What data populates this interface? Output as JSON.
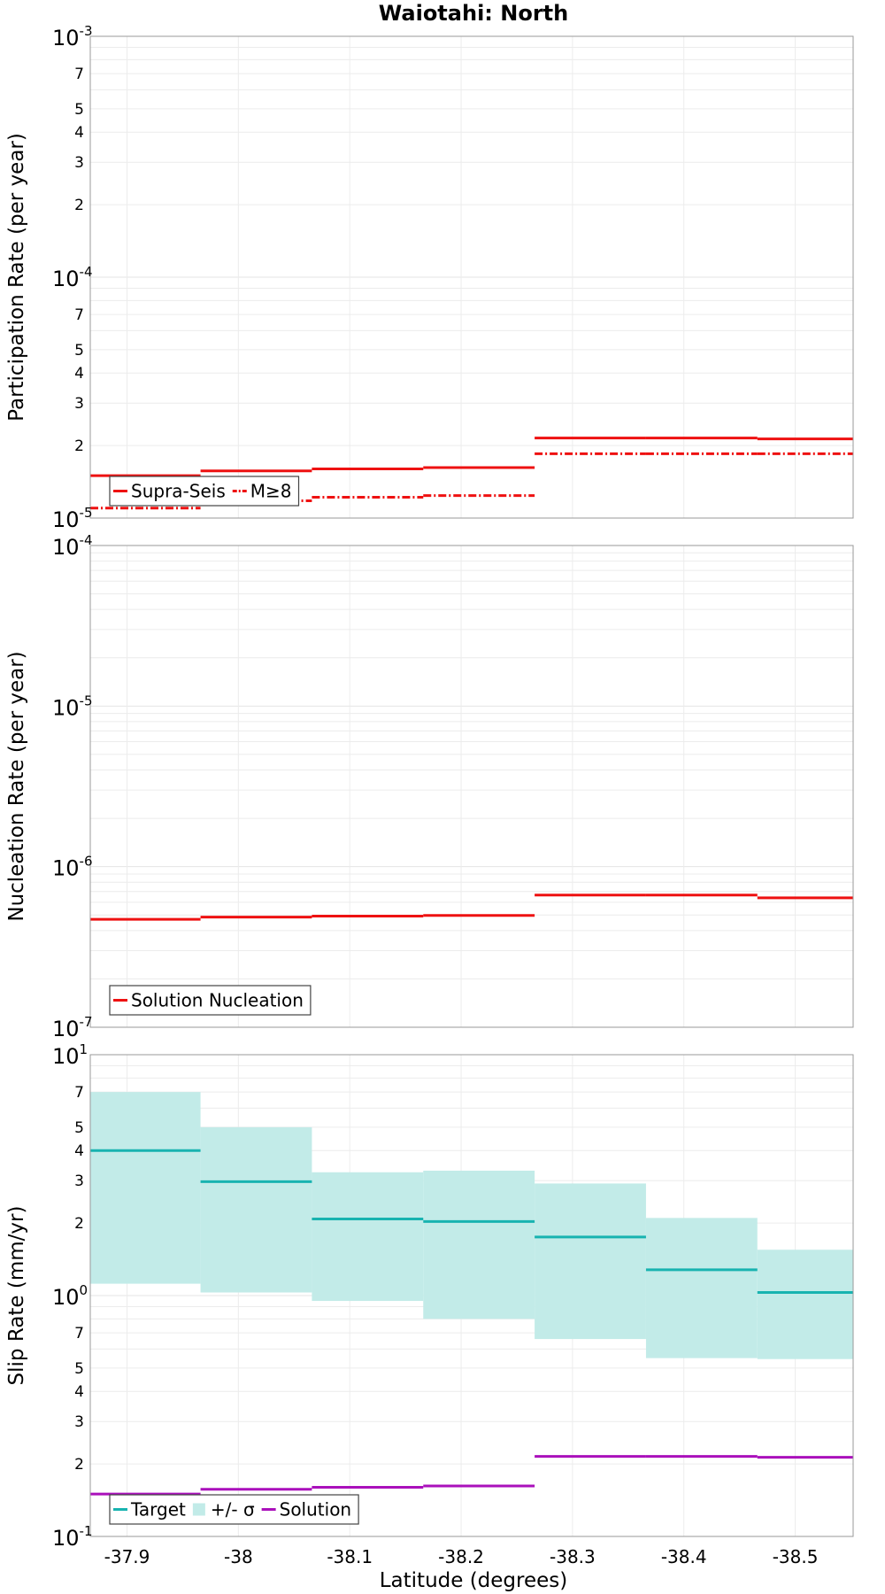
{
  "chart_data": {
    "title": "Waiotahi: North",
    "xlabel": "Latitude (degrees)",
    "x_ticks": [
      "-37.9",
      "-38",
      "-38.1",
      "-38.2",
      "-38.3",
      "-38.4",
      "-38.5"
    ],
    "x_tick_values": [
      -37.9,
      -38.0,
      -38.1,
      -38.2,
      -38.3,
      -38.4,
      -38.5
    ],
    "xlim": [
      -37.867,
      -38.552
    ],
    "x_bin_edges": [
      -37.867,
      -37.966,
      -38.066,
      -38.166,
      -38.266,
      -38.366,
      -38.466,
      -38.552
    ],
    "panels": [
      {
        "type": "line",
        "step": true,
        "ylabel": "Participation Rate (per year)",
        "yscale": "log",
        "ylim": [
          1e-05,
          0.001
        ],
        "major_ticks": [
          {
            "base": "10",
            "exp": "-5"
          },
          {
            "base": "10",
            "exp": "-4"
          },
          {
            "base": "10",
            "exp": "-3"
          }
        ],
        "minor_tick_labels": [
          "2",
          "3",
          "4",
          "5",
          "7"
        ],
        "series": [
          {
            "name": "Supra-Seis",
            "color": "#ee1111",
            "dash": "solid",
            "values": [
              1.5e-05,
              1.57e-05,
              1.6e-05,
              1.62e-05,
              2.15e-05,
              2.15e-05,
              2.13e-05
            ]
          },
          {
            "name": "M≥8",
            "color": "#ee1111",
            "dash": "dashdot",
            "values": [
              1.1e-05,
              1.18e-05,
              1.22e-05,
              1.24e-05,
              1.85e-05,
              1.85e-05,
              1.85e-05
            ]
          }
        ],
        "legend_position": "bottom-left"
      },
      {
        "type": "line",
        "step": true,
        "ylabel": "Nucleation Rate (per year)",
        "yscale": "log",
        "ylim": [
          1e-07,
          0.0001
        ],
        "major_ticks": [
          {
            "base": "10",
            "exp": "-7"
          },
          {
            "base": "10",
            "exp": "-6"
          },
          {
            "base": "10",
            "exp": "-5"
          },
          {
            "base": "10",
            "exp": "-4"
          }
        ],
        "minor_tick_labels": [],
        "series": [
          {
            "name": "Solution Nucleation",
            "color": "#ee1111",
            "dash": "solid",
            "values": [
              4.7e-07,
              4.85e-07,
              4.92e-07,
              4.97e-07,
              6.65e-07,
              6.65e-07,
              6.4e-07
            ]
          }
        ],
        "legend_position": "bottom-left"
      },
      {
        "type": "line",
        "step": true,
        "ylabel": "Slip Rate (mm/yr)",
        "yscale": "log",
        "ylim": [
          0.1,
          10
        ],
        "major_ticks": [
          {
            "base": "10",
            "exp": "-1"
          },
          {
            "base": "10",
            "exp": "0"
          },
          {
            "base": "10",
            "exp": "1"
          }
        ],
        "minor_tick_labels": [
          "2",
          "3",
          "4",
          "5",
          "7"
        ],
        "series": [
          {
            "name": "Target",
            "color": "#18b3b0",
            "dash": "solid",
            "values": [
              4.0,
              2.97,
              2.08,
              2.03,
              1.75,
              1.28,
              1.03
            ]
          },
          {
            "name": "+/- σ",
            "color": "#c2ebe8",
            "type": "band",
            "lower": [
              1.12,
              1.03,
              0.95,
              0.8,
              0.66,
              0.55,
              0.545
            ],
            "upper": [
              7.0,
              5.0,
              3.25,
              3.3,
              2.92,
              2.1,
              1.55
            ]
          },
          {
            "name": "Solution",
            "color": "#aa10bb",
            "dash": "solid",
            "values": [
              0.15,
              0.157,
              0.16,
              0.162,
              0.215,
              0.215,
              0.213
            ]
          }
        ],
        "legend_position": "bottom-left"
      }
    ]
  }
}
